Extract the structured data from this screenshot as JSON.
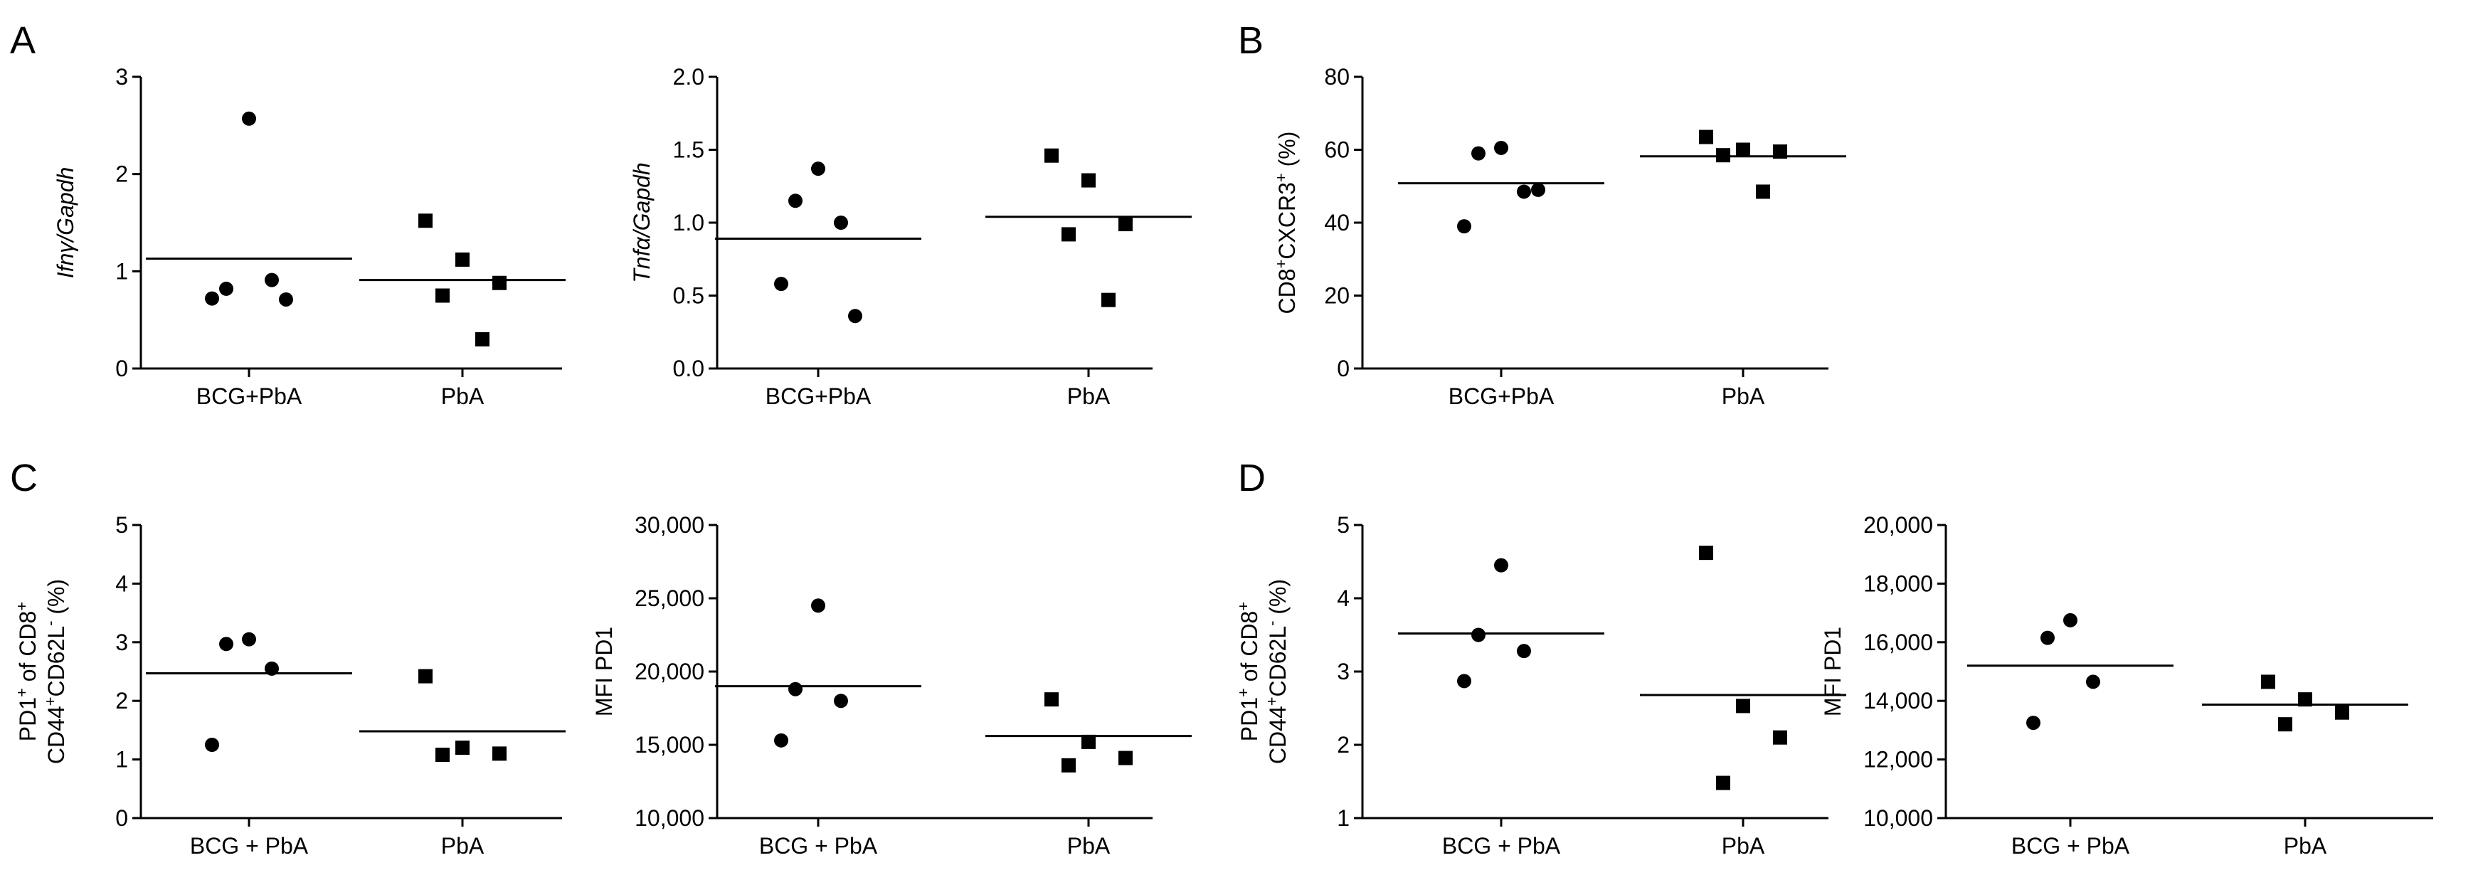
{
  "panel_labels": [
    "A",
    "B",
    "C",
    "D"
  ],
  "chart_data": [
    {
      "type": "scatter",
      "panel": "A",
      "ylabel_parts": [
        {
          "t": "Ifnγ/Gapdh",
          "s": "italic"
        }
      ],
      "categories": [
        "BCG+PbA",
        "PbA"
      ],
      "ylim": [
        0,
        3
      ],
      "yticks": [
        0,
        1,
        2,
        3
      ],
      "ytick_labels": [
        "0",
        "1",
        "2",
        "3"
      ],
      "series": [
        {
          "category": "BCG+PbA",
          "marker": "circle",
          "values": [
            2.57,
            0.82,
            0.91,
            0.72,
            0.71
          ],
          "mean": 1.13
        },
        {
          "category": "PbA",
          "marker": "square",
          "values": [
            1.52,
            1.12,
            0.88,
            0.75,
            0.3
          ],
          "mean": 0.91
        }
      ]
    },
    {
      "type": "scatter",
      "panel": "A",
      "ylabel_parts": [
        {
          "t": "Tnfα/Gapdh",
          "s": "italic"
        }
      ],
      "categories": [
        "BCG+PbA",
        "PbA"
      ],
      "ylim": [
        0,
        2
      ],
      "yticks": [
        0,
        0.5,
        1,
        1.5,
        2
      ],
      "ytick_labels": [
        "0.0",
        "0.5",
        "1.0",
        "1.5",
        "2.0"
      ],
      "series": [
        {
          "category": "BCG+PbA",
          "marker": "circle",
          "values": [
            1.37,
            1.15,
            1.0,
            0.58,
            0.36
          ],
          "mean": 0.89
        },
        {
          "category": "PbA",
          "marker": "square",
          "values": [
            1.46,
            1.29,
            0.99,
            0.92,
            0.47
          ],
          "mean": 1.04
        }
      ]
    },
    {
      "type": "scatter",
      "panel": "B",
      "ylabel_parts": [
        {
          "t": "CD8",
          "s": "n"
        },
        {
          "t": "+",
          "s": "sup"
        },
        {
          "t": "CXCR3",
          "s": "n"
        },
        {
          "t": "+",
          "s": "sup"
        },
        {
          "t": " (%)",
          "s": "n"
        }
      ],
      "categories": [
        "BCG+PbA",
        "PbA"
      ],
      "ylim": [
        0,
        80
      ],
      "yticks": [
        0,
        20,
        40,
        60,
        80
      ],
      "ytick_labels": [
        "0",
        "20",
        "40",
        "60",
        "80"
      ],
      "series": [
        {
          "category": "BCG+PbA",
          "marker": "circle",
          "values": [
            60.5,
            59.0,
            48.5,
            39.0,
            49.0
          ],
          "mean": 50.8
        },
        {
          "category": "PbA",
          "marker": "square",
          "values": [
            63.5,
            60.0,
            59.5,
            58.5,
            48.5
          ],
          "mean": 58.2
        }
      ]
    },
    {
      "type": "scatter",
      "panel": "C",
      "ylabel_parts": [
        {
          "t": "PD1",
          "s": "n"
        },
        {
          "t": "+",
          "s": "sup"
        },
        {
          "t": " of CD8",
          "s": "n"
        },
        {
          "t": "+",
          "s": "sup"
        }
      ],
      "ylabel2_parts": [
        {
          "t": "CD44",
          "s": "n"
        },
        {
          "t": "+",
          "s": "sup"
        },
        {
          "t": "CD62L",
          "s": "n"
        },
        {
          "t": "-",
          "s": "sup"
        },
        {
          "t": " (%)",
          "s": "n"
        }
      ],
      "categories": [
        "BCG + PbA",
        "PbA"
      ],
      "ylim": [
        0,
        5
      ],
      "yticks": [
        0,
        1,
        2,
        3,
        4,
        5
      ],
      "ytick_labels": [
        "0",
        "1",
        "2",
        "3",
        "4",
        "5"
      ],
      "series": [
        {
          "category": "BCG + PbA",
          "marker": "circle",
          "values": [
            3.05,
            2.97,
            2.55,
            1.25
          ],
          "mean": 2.47
        },
        {
          "category": "PbA",
          "marker": "square",
          "values": [
            2.42,
            1.2,
            1.1,
            1.08
          ],
          "mean": 1.48
        }
      ]
    },
    {
      "type": "scatter",
      "panel": "C",
      "ylabel_parts": [
        {
          "t": "MFI PD1",
          "s": "n"
        }
      ],
      "categories": [
        "BCG + PbA",
        "PbA"
      ],
      "ylim": [
        10000,
        30000
      ],
      "yticks": [
        10000,
        15000,
        20000,
        25000,
        30000
      ],
      "ytick_labels": [
        "10,000",
        "15,000",
        "20,000",
        "25,000",
        "30,000"
      ],
      "series": [
        {
          "category": "BCG + PbA",
          "marker": "circle",
          "values": [
            24500,
            18800,
            18000,
            15300
          ],
          "mean": 19000
        },
        {
          "category": "PbA",
          "marker": "square",
          "values": [
            18100,
            15200,
            14100,
            13600
          ],
          "mean": 15600
        }
      ]
    },
    {
      "type": "scatter",
      "panel": "D",
      "ylabel_parts": [
        {
          "t": "PD1",
          "s": "n"
        },
        {
          "t": "+",
          "s": "sup"
        },
        {
          "t": " of CD8",
          "s": "n"
        },
        {
          "t": "+",
          "s": "sup"
        }
      ],
      "ylabel2_parts": [
        {
          "t": "CD44",
          "s": "n"
        },
        {
          "t": "+",
          "s": "sup"
        },
        {
          "t": "CD62L",
          "s": "n"
        },
        {
          "t": "-",
          "s": "sup"
        },
        {
          "t": " (%)",
          "s": "n"
        }
      ],
      "categories": [
        "BCG + PbA",
        "PbA"
      ],
      "ylim": [
        1,
        5
      ],
      "yticks": [
        1,
        2,
        3,
        4,
        5
      ],
      "ytick_labels": [
        "1",
        "2",
        "3",
        "4",
        "5"
      ],
      "series": [
        {
          "category": "BCG + PbA",
          "marker": "circle",
          "values": [
            4.45,
            3.5,
            3.28,
            2.87
          ],
          "mean": 3.52
        },
        {
          "category": "PbA",
          "marker": "square",
          "values": [
            4.62,
            2.53,
            2.1,
            1.48
          ],
          "mean": 2.68
        }
      ]
    },
    {
      "type": "scatter",
      "panel": "D",
      "ylabel_parts": [
        {
          "t": "MFI PD1",
          "s": "n"
        }
      ],
      "categories": [
        "BCG + PbA",
        "PbA"
      ],
      "ylim": [
        10000,
        20000
      ],
      "yticks": [
        10000,
        12000,
        14000,
        16000,
        18000,
        20000
      ],
      "ytick_labels": [
        "10,000",
        "12,000",
        "14,000",
        "16,000",
        "18,000",
        "20,000"
      ],
      "series": [
        {
          "category": "BCG + PbA",
          "marker": "circle",
          "values": [
            16750,
            16150,
            14650,
            13250
          ],
          "mean": 15200
        },
        {
          "category": "PbA",
          "marker": "square",
          "values": [
            14650,
            14050,
            13600,
            13200
          ],
          "mean": 13870
        }
      ]
    }
  ]
}
